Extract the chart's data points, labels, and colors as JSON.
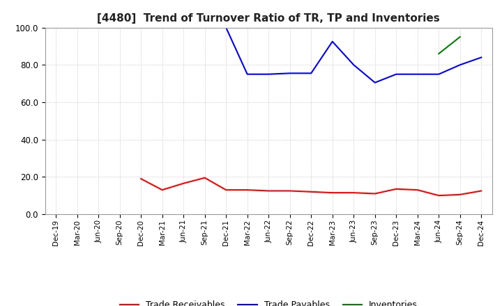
{
  "title": "[4480]  Trend of Turnover Ratio of TR, TP and Inventories",
  "ylim": [
    0,
    100
  ],
  "yticks": [
    0.0,
    20.0,
    40.0,
    60.0,
    80.0,
    100.0
  ],
  "x_labels": [
    "Dec-19",
    "Mar-20",
    "Jun-20",
    "Sep-20",
    "Dec-20",
    "Mar-21",
    "Jun-21",
    "Sep-21",
    "Dec-21",
    "Mar-22",
    "Jun-22",
    "Sep-22",
    "Dec-22",
    "Mar-23",
    "Jun-23",
    "Sep-23",
    "Dec-23",
    "Mar-24",
    "Jun-24",
    "Sep-24",
    "Dec-24"
  ],
  "trade_receivables": [
    null,
    null,
    null,
    null,
    19.0,
    13.0,
    16.5,
    19.5,
    13.0,
    13.0,
    12.5,
    12.5,
    12.0,
    11.5,
    11.5,
    11.0,
    13.5,
    13.0,
    10.0,
    10.5,
    12.5
  ],
  "trade_payables": [
    null,
    null,
    null,
    null,
    null,
    null,
    null,
    null,
    100.0,
    75.0,
    75.0,
    75.5,
    75.5,
    92.5,
    80.0,
    70.5,
    75.0,
    75.0,
    75.0,
    80.0,
    84.0
  ],
  "inventories": [
    null,
    null,
    null,
    null,
    null,
    null,
    null,
    null,
    null,
    null,
    null,
    null,
    null,
    null,
    null,
    null,
    null,
    null,
    86.0,
    95.0,
    null
  ],
  "tr_color": "#ff0000",
  "tp_color": "#0000ff",
  "inv_color": "#008000",
  "legend_labels": [
    "Trade Receivables",
    "Trade Payables",
    "Inventories"
  ],
  "background_color": "#ffffff",
  "grid_color": "#bbbbbb"
}
